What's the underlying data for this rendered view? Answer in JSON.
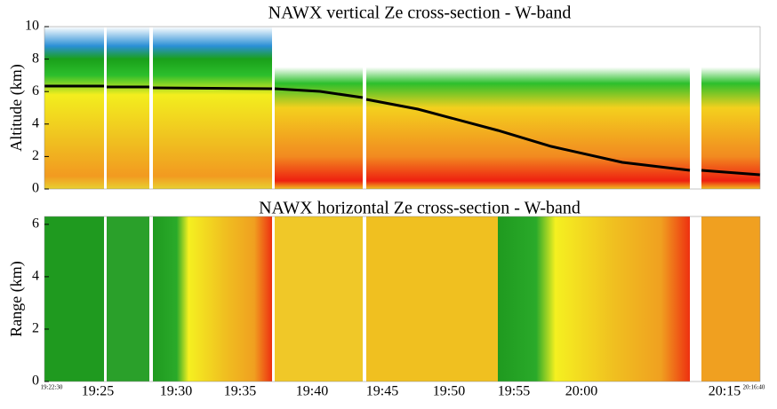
{
  "chart_data": [
    {
      "type": "heatmap",
      "title": "NAWX vertical Ze cross-section  - W-band",
      "ylabel": "Altitude (km)",
      "ylim": [
        0,
        10
      ],
      "yticks": [
        0,
        2,
        4,
        6,
        8,
        10
      ]
    },
    {
      "type": "heatmap",
      "title": "NAWX horizontal Ze cross-section  - W-band",
      "ylabel": "Range (km)",
      "ylim": [
        0,
        6.3
      ],
      "yticks": [
        0,
        2,
        4,
        6
      ],
      "xtick_labels": [
        "19:25",
        "19:30",
        "19:35",
        "19:40",
        "19:45",
        "19:50",
        "19:55",
        "20:00",
        "20:15"
      ],
      "x_start_label": "19:22:30",
      "x_end_label": "20:16:40"
    }
  ]
}
